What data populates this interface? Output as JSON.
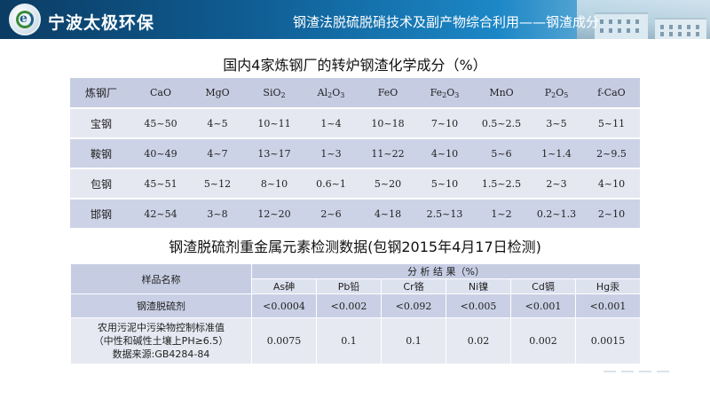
{
  "header": {
    "company": "宁波太极环保",
    "title": "钢渣法脱硫脱硝技术及副产物综合利用——钢渣成分",
    "logo_icon": "taiji-logo-icon",
    "colors": {
      "banner_dark": "#0b3c63",
      "banner_light": "#1c87c6"
    }
  },
  "table1": {
    "title": "国内4家炼钢厂的转炉钢渣化学成分（%）",
    "headers": [
      {
        "base": "炼钢厂",
        "sub": "",
        "tail": ""
      },
      {
        "base": "CaO",
        "sub": "",
        "tail": ""
      },
      {
        "base": "MgO",
        "sub": "",
        "tail": ""
      },
      {
        "base": "SiO",
        "sub": "2",
        "tail": ""
      },
      {
        "base": "Al",
        "sub": "2",
        "tail": "O",
        "sub2": "3"
      },
      {
        "base": "FeO",
        "sub": "",
        "tail": ""
      },
      {
        "base": "Fe",
        "sub": "2",
        "tail": "O",
        "sub2": "3"
      },
      {
        "base": "MnO",
        "sub": "",
        "tail": ""
      },
      {
        "base": "P",
        "sub": "2",
        "tail": "O",
        "sub2": "5"
      },
      {
        "base": "f-CaO",
        "sub": "",
        "tail": ""
      }
    ],
    "rows": [
      [
        "宝钢",
        "45~50",
        "4~5",
        "10~11",
        "1~4",
        "10~18",
        "7~10",
        "0.5~2.5",
        "3~5",
        "5~11"
      ],
      [
        "鞍钢",
        "40~49",
        "4~7",
        "13~17",
        "1~3",
        "11~22",
        "4~10",
        "5~6",
        "1~1.4",
        "2~9.5"
      ],
      [
        "包钢",
        "45~51",
        "5~12",
        "8~10",
        "0.6~1",
        "5~20",
        "5~10",
        "1.5~2.5",
        "2~3",
        "4~10"
      ],
      [
        "邯钢",
        "42~54",
        "3~8",
        "12~20",
        "2~6",
        "4~18",
        "2.5~13",
        "1~2",
        "0.2~1.3",
        "2~10"
      ]
    ]
  },
  "table2": {
    "title": "钢渣脱硫剂重金属元素检测数据(包钢2015年4月17日检测)",
    "row_header": "样品名称",
    "group_header": "分 析 结 果（%）",
    "elements": [
      "As砷",
      "Pb铅",
      "Cr铬",
      "Ni镍",
      "Cd镉",
      "Hg汞"
    ],
    "rows": [
      {
        "name_lines": [
          "钢渣脱硫剂"
        ],
        "values": [
          "<0.0004",
          "<0.002",
          "<0.092",
          "<0.005",
          "<0.001",
          "<0.001"
        ]
      },
      {
        "name_lines": [
          "农用污泥中污染物控制标准值",
          "（中性和碱性土壤上PH≥6.5）",
          "数据来源:GB4284-84"
        ],
        "values": [
          "0.0075",
          "0.1",
          "0.1",
          "0.02",
          "0.002",
          "0.0015"
        ]
      }
    ]
  }
}
